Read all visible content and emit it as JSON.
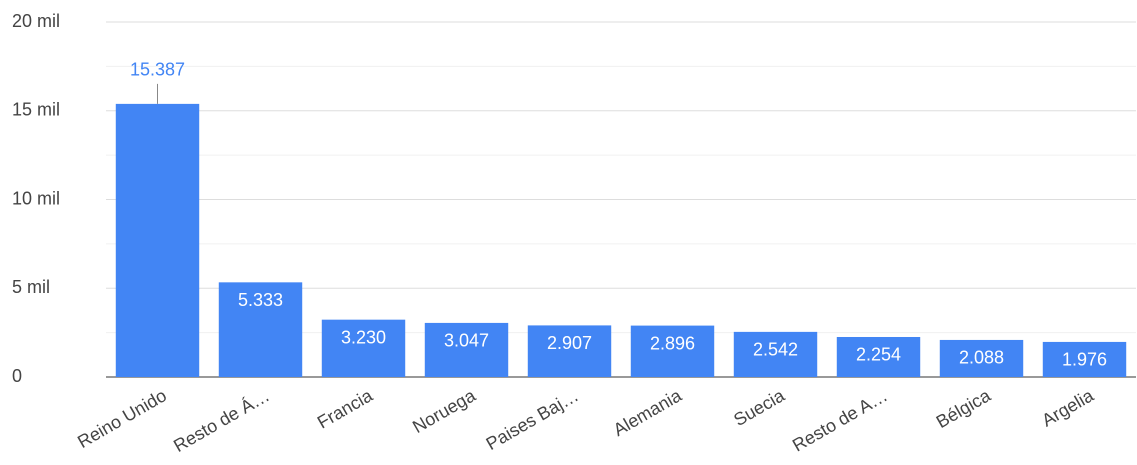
{
  "chart_data": {
    "type": "bar",
    "categories": [
      "Reino Unido",
      "Resto de Á…",
      "Francia",
      "Noruega",
      "Paises Baj…",
      "Alemania",
      "Suecia",
      "Resto de A…",
      "Bélgica",
      "Argelia"
    ],
    "values": [
      15387,
      5333,
      3230,
      3047,
      2907,
      2896,
      2542,
      2254,
      2088,
      1976
    ],
    "value_labels": [
      "15.387",
      "5.333",
      "3.230",
      "3.047",
      "2.907",
      "2.896",
      "2.542",
      "2.254",
      "2.088",
      "1.976"
    ],
    "color": "#4285f4",
    "ylim": [
      0,
      20000
    ],
    "yticks": [
      0,
      {
        "value": 5000,
        "label": "5 mil"
      },
      {
        "value": 10000,
        "label": "10 mil"
      },
      {
        "value": 15000,
        "label": "15 mil"
      },
      {
        "value": 20000,
        "label": "20 mil"
      }
    ],
    "grid": true
  }
}
